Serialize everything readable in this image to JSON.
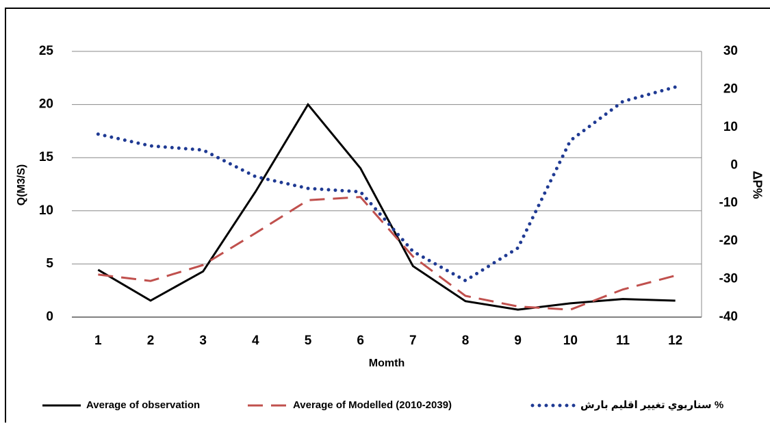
{
  "chart_data": {
    "type": "line",
    "x_label": "Momth",
    "y_label": "Q(M3/S)",
    "y2_label": "ΔP%",
    "categories": [
      "1",
      "2",
      "3",
      "4",
      "5",
      "6",
      "7",
      "8",
      "9",
      "10",
      "11",
      "12"
    ],
    "ylim": [
      0,
      25
    ],
    "yticks": [
      0,
      5,
      10,
      15,
      20,
      25
    ],
    "y2lim": [
      -40,
      30
    ],
    "y2ticks": [
      -40,
      -30,
      -20,
      -10,
      0,
      10,
      20,
      30
    ],
    "grid": true,
    "legend": "bottom",
    "series": [
      {
        "name": "Average of observation",
        "color": "#000000",
        "style": "solid",
        "values": [
          4.45,
          1.55,
          4.3,
          11.8,
          20,
          14,
          4.8,
          1.5,
          0.7,
          1.3,
          1.7,
          1.55
        ]
      },
      {
        "name": "Average of Modelled (2010-2039)",
        "color": "#c0504d",
        "style": "dashed",
        "values": [
          4.0,
          3.4,
          4.9,
          7.9,
          11,
          11.3,
          5.7,
          2,
          1,
          0.7,
          2.6,
          3.9
        ]
      },
      {
        "name": "سناريوي تغيير اقليم بارش %",
        "color": "#1f3a93",
        "style": "dotted",
        "axis": "y2",
        "values": [
          8.2,
          5.1,
          4,
          -3,
          -6.1,
          -7,
          -22.7,
          -30.4,
          -21.8,
          6.5,
          16.8,
          20.6
        ]
      }
    ]
  }
}
